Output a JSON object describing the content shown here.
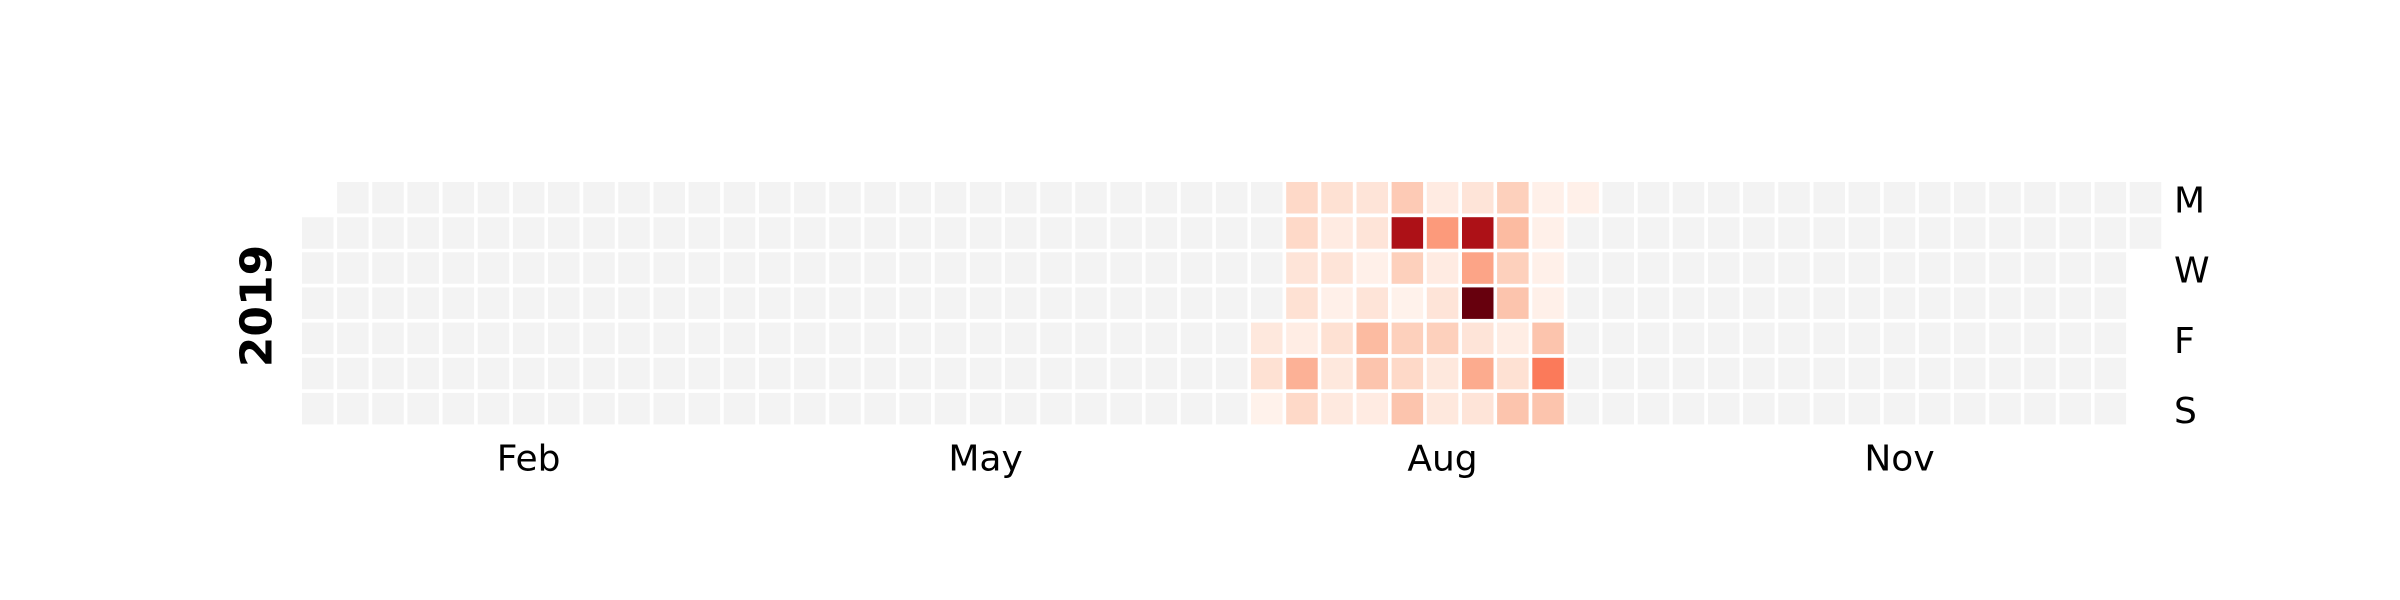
{
  "chart_data": {
    "type": "heatmap",
    "title": "",
    "year_label": "2019",
    "year": 2019,
    "first_day_weekday": "Tuesday",
    "month_ticks": [
      "Feb",
      "May",
      "Aug",
      "Nov"
    ],
    "weekday_ticks": [
      "M",
      "W",
      "F",
      "S"
    ],
    "colormap": "Reds",
    "empty_color": "#f3f3f3",
    "grid": false,
    "legend": "none",
    "intensity_scale": [
      0,
      1
    ],
    "weeks": [
      {
        "week_start": "2019-07-08",
        "values": [
          null,
          null,
          null,
          null,
          0.08,
          0.12,
          0.02
        ]
      },
      {
        "week_start": "2019-07-15",
        "values": [
          0.15,
          0.15,
          0.1,
          0.12,
          0.05,
          0.28,
          0.15
        ]
      },
      {
        "week_start": "2019-07-22",
        "values": [
          0.12,
          0.06,
          0.1,
          0.03,
          0.12,
          0.08,
          0.07
        ]
      },
      {
        "week_start": "2019-07-29",
        "values": [
          0.1,
          0.1,
          0.03,
          0.1,
          0.25,
          0.22,
          0.06
        ]
      },
      {
        "week_start": "2019-08-05",
        "values": [
          0.2,
          0.85,
          0.18,
          0.02,
          0.18,
          0.15,
          0.22
        ]
      },
      {
        "week_start": "2019-08-12",
        "values": [
          0.06,
          0.35,
          0.06,
          0.1,
          0.18,
          0.08,
          0.08
        ]
      },
      {
        "week_start": "2019-08-19",
        "values": [
          0.1,
          0.85,
          0.32,
          1.0,
          0.1,
          0.3,
          0.1
        ]
      },
      {
        "week_start": "2019-08-26",
        "values": [
          0.18,
          0.25,
          0.18,
          0.22,
          0.05,
          0.12,
          0.22
        ]
      },
      {
        "week_start": "2019-09-02",
        "values": [
          0.03,
          0.03,
          0.03,
          0.03,
          0.22,
          0.45,
          0.22
        ]
      },
      {
        "week_start": "2019-09-09",
        "values": [
          0.03,
          null,
          null,
          null,
          null,
          null,
          null
        ]
      }
    ]
  }
}
